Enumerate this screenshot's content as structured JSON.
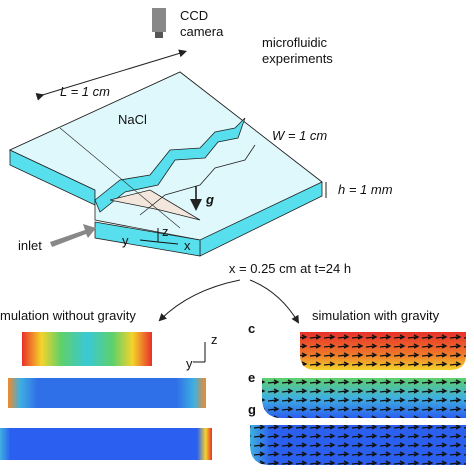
{
  "labels": {
    "camera": [
      "CCD",
      "camera"
    ],
    "experiments": [
      "microfluidic",
      "experiments"
    ],
    "length": "L = 1 cm",
    "salt": "NaCl",
    "width": "W = 1 cm",
    "height": "h = 1 mm",
    "gravity": "g",
    "inlet": "inlet",
    "axes_top": [
      "y",
      "z",
      "x"
    ],
    "section": "x = 0.25 cm at t=24 h",
    "left_title": "mulation without gravity",
    "right_title": "simulation with gravity",
    "panels": [
      "c",
      "e",
      "g"
    ],
    "axes_mid": [
      "z",
      "y"
    ]
  }
}
